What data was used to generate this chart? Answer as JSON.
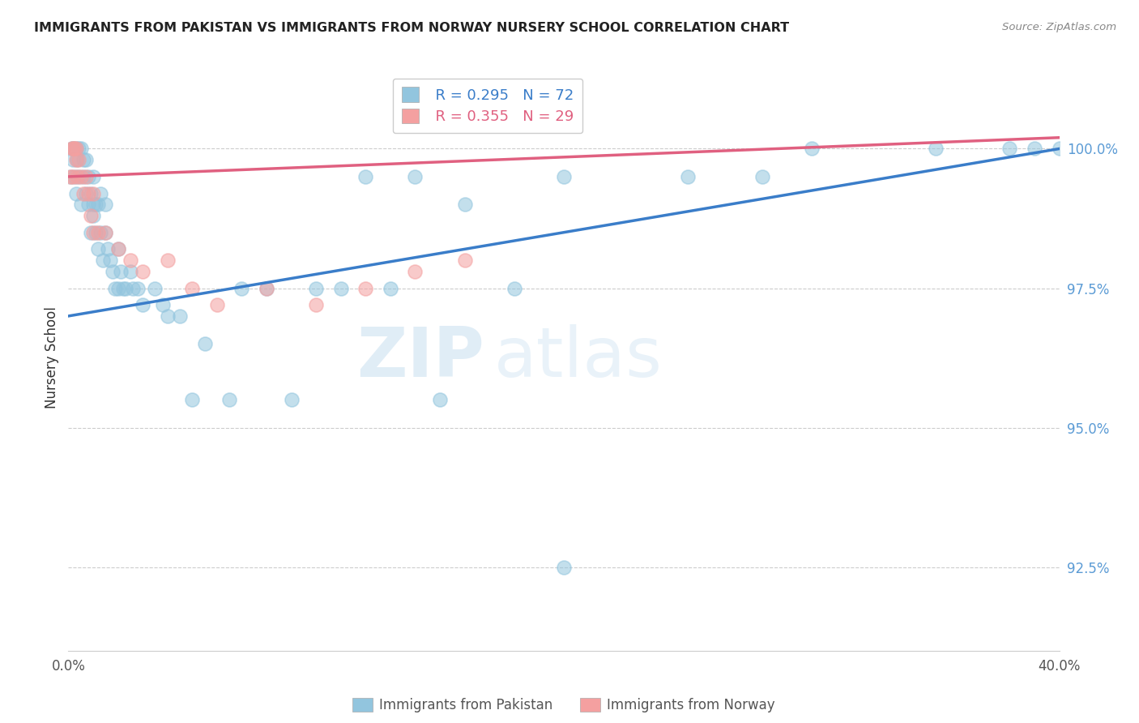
{
  "title": "IMMIGRANTS FROM PAKISTAN VS IMMIGRANTS FROM NORWAY NURSERY SCHOOL CORRELATION CHART",
  "source": "Source: ZipAtlas.com",
  "ylabel": "Nursery School",
  "xlim": [
    0.0,
    40.0
  ],
  "ylim": [
    91.0,
    101.5
  ],
  "yticks": [
    92.5,
    95.0,
    97.5,
    100.0
  ],
  "ytick_labels": [
    "92.5%",
    "95.0%",
    "97.5%",
    "100.0%"
  ],
  "pakistan_color": "#92C5DE",
  "norway_color": "#F4A0A0",
  "trendline_pakistan_color": "#3A7DC9",
  "trendline_norway_color": "#E06080",
  "legend_R_pakistan": "R = 0.295",
  "legend_N_pakistan": "N = 72",
  "legend_R_norway": "R = 0.355",
  "legend_N_norway": "N = 29",
  "legend_label_pakistan": "Immigrants from Pakistan",
  "legend_label_norway": "Immigrants from Norway",
  "watermark_zip": "ZIP",
  "watermark_atlas": "atlas",
  "background_color": "#ffffff",
  "grid_color": "#cccccc",
  "pakistan_x": [
    0.1,
    0.15,
    0.2,
    0.2,
    0.25,
    0.3,
    0.3,
    0.35,
    0.4,
    0.4,
    0.5,
    0.5,
    0.6,
    0.6,
    0.7,
    0.7,
    0.8,
    0.8,
    0.9,
    0.9,
    1.0,
    1.0,
    1.0,
    1.1,
    1.1,
    1.2,
    1.2,
    1.3,
    1.3,
    1.4,
    1.5,
    1.5,
    1.6,
    1.7,
    1.8,
    1.9,
    2.0,
    2.0,
    2.1,
    2.2,
    2.3,
    2.5,
    2.6,
    2.8,
    3.0,
    3.5,
    3.8,
    4.0,
    4.5,
    5.0,
    5.5,
    6.5,
    7.0,
    8.0,
    9.0,
    10.0,
    11.0,
    12.0,
    13.0,
    14.0,
    15.0,
    16.0,
    18.0,
    20.0,
    20.0,
    25.0,
    28.0,
    30.0,
    35.0,
    38.0,
    39.0,
    40.0
  ],
  "pakistan_y": [
    99.5,
    100.0,
    99.8,
    100.0,
    99.5,
    99.2,
    100.0,
    99.8,
    99.5,
    100.0,
    99.0,
    100.0,
    99.5,
    99.8,
    99.2,
    99.8,
    99.0,
    99.5,
    98.5,
    99.2,
    98.8,
    99.0,
    99.5,
    98.5,
    99.0,
    98.2,
    99.0,
    98.5,
    99.2,
    98.0,
    98.5,
    99.0,
    98.2,
    98.0,
    97.8,
    97.5,
    97.5,
    98.2,
    97.8,
    97.5,
    97.5,
    97.8,
    97.5,
    97.5,
    97.2,
    97.5,
    97.2,
    97.0,
    97.0,
    95.5,
    96.5,
    95.5,
    97.5,
    97.5,
    95.5,
    97.5,
    97.5,
    99.5,
    97.5,
    99.5,
    95.5,
    99.0,
    97.5,
    99.5,
    92.5,
    99.5,
    99.5,
    100.0,
    100.0,
    100.0,
    100.0,
    100.0
  ],
  "norway_x": [
    0.1,
    0.15,
    0.2,
    0.2,
    0.25,
    0.3,
    0.3,
    0.35,
    0.4,
    0.5,
    0.6,
    0.7,
    0.8,
    0.9,
    1.0,
    1.0,
    1.2,
    1.5,
    2.0,
    2.5,
    3.0,
    4.0,
    5.0,
    6.0,
    8.0,
    10.0,
    12.0,
    14.0,
    16.0
  ],
  "norway_y": [
    99.5,
    100.0,
    99.5,
    100.0,
    100.0,
    99.8,
    100.0,
    99.5,
    99.8,
    99.5,
    99.2,
    99.5,
    99.2,
    98.8,
    98.5,
    99.2,
    98.5,
    98.5,
    98.2,
    98.0,
    97.8,
    98.0,
    97.5,
    97.2,
    97.5,
    97.2,
    97.5,
    97.8,
    98.0
  ],
  "pk_trend_x0": 0.0,
  "pk_trend_y0": 97.0,
  "pk_trend_x1": 40.0,
  "pk_trend_y1": 100.0,
  "no_trend_x0": 0.0,
  "no_trend_y0": 99.5,
  "no_trend_x1": 40.0,
  "no_trend_y1": 100.2
}
